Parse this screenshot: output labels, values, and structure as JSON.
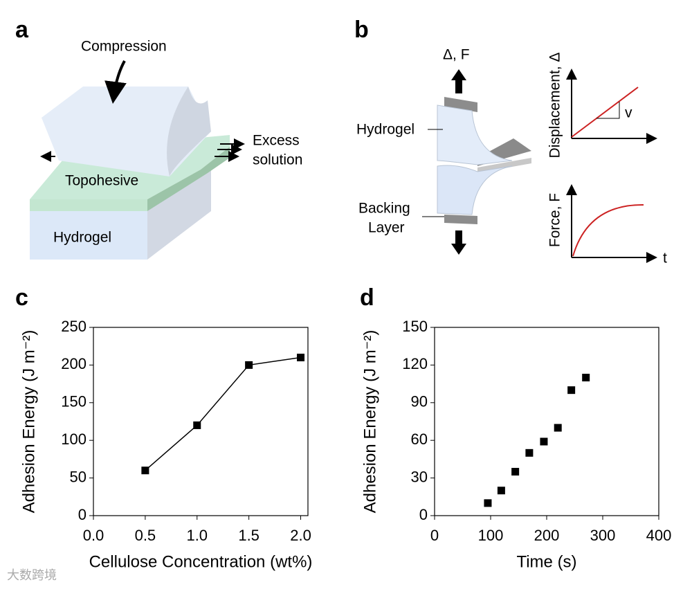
{
  "panel_labels": [
    "a",
    "b",
    "c",
    "d"
  ],
  "panel_a": {
    "compression": "Compression",
    "excess": [
      "Excess",
      "solution"
    ],
    "topohesive": "Topohesive",
    "hydrogel": "Hydrogel"
  },
  "panel_b": {
    "force_label": "Δ, F",
    "hydrogel": "Hydrogel",
    "backing": [
      "Backing",
      "Layer"
    ],
    "displacement_axis": "Displacement, Δ",
    "rate": "v",
    "force_axis": "Force, F",
    "time_axis": "t"
  },
  "watermark": "大数跨境",
  "chart_data": [
    {
      "type": "line",
      "y_label": "Adhesion Energy (J m⁻²)",
      "x_label": "Cellulose Concentration (wt%)",
      "x": [
        0.5,
        1,
        1.5,
        2
      ],
      "values": [
        60,
        120,
        200,
        210
      ],
      "color": "#000000",
      "xlim": [
        0,
        2.07
      ],
      "xticks": [
        {
          "value": 0,
          "label": "0.0"
        },
        {
          "value": 0.5,
          "label": "0.5"
        },
        {
          "value": 1,
          "label": "1.0"
        },
        {
          "value": 1.5,
          "label": "1.5"
        },
        {
          "value": 2,
          "label": "2.0"
        }
      ],
      "ylim": [
        0,
        250
      ],
      "yticks": [
        0,
        50,
        100,
        150,
        200,
        250
      ]
    },
    {
      "type": "scatter",
      "y_label": "Adhesion Energy (J m⁻²)",
      "x_label": "Time (s)",
      "x": [
        95,
        119,
        144,
        169,
        195,
        220,
        244,
        270
      ],
      "values": [
        10,
        20,
        35,
        50,
        59,
        70,
        100,
        110
      ],
      "color": "#000000",
      "xlim": [
        0,
        400
      ],
      "xticks": [
        0,
        100,
        200,
        300,
        400
      ],
      "ylim": [
        0,
        150
      ],
      "yticks": [
        0,
        30,
        60,
        90,
        120,
        150
      ]
    }
  ]
}
